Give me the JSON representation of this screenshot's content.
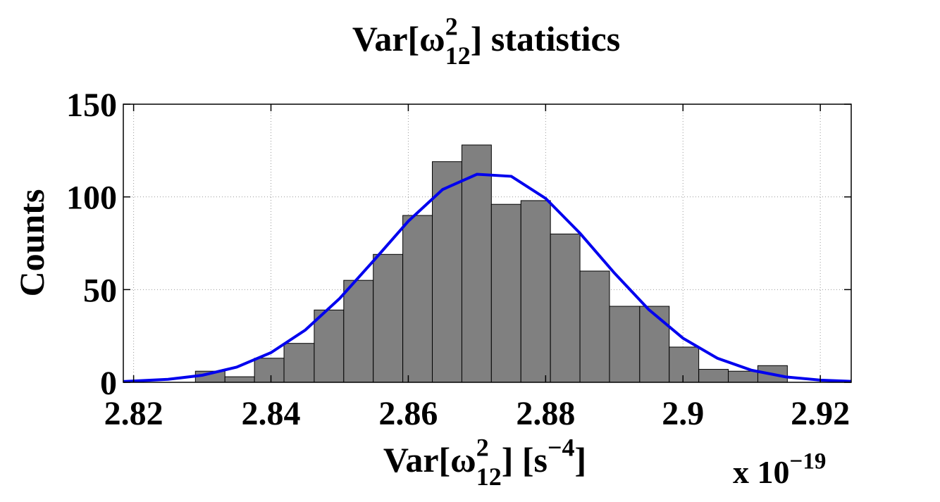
{
  "chart_data": {
    "type": "histogram",
    "title_parts": [
      "Var[ω",
      "2",
      "12",
      "] statistics"
    ],
    "xlabel_parts": [
      "Var[ω",
      "2",
      "12",
      "]  [s",
      "−4",
      "]"
    ],
    "ylabel": "Counts",
    "x_multiplier_parts": [
      "x 10",
      "−19"
    ],
    "bins": [
      2.829,
      2.8333,
      2.8376,
      2.8419,
      2.8463,
      2.8506,
      2.8549,
      2.8592,
      2.8635,
      2.8678,
      2.8721,
      2.8764,
      2.8807,
      2.885,
      2.8893,
      2.8937,
      2.898,
      2.9023,
      2.9066,
      2.9109,
      2.9152
    ],
    "values": [
      6,
      3,
      13,
      21,
      39,
      55,
      69,
      90,
      119,
      128,
      96,
      98,
      80,
      60,
      41,
      41,
      19,
      7,
      6,
      9
    ],
    "color": "#808080",
    "fit": {
      "color": "#0000ee",
      "x": [
        2.8185,
        2.825,
        2.83,
        2.835,
        2.84,
        2.845,
        2.85,
        2.855,
        2.86,
        2.865,
        2.87,
        2.875,
        2.88,
        2.885,
        2.89,
        2.895,
        2.9,
        2.905,
        2.91,
        2.915,
        2.92,
        2.9245
      ],
      "values": [
        0.45,
        1.6,
        3.8,
        8.2,
        16.0,
        28.2,
        45.2,
        65.8,
        86.9,
        104.0,
        112.2,
        111.1,
        99.2,
        80.4,
        59.0,
        39.3,
        23.8,
        13.0,
        6.5,
        2.9,
        1.2,
        0.5
      ]
    },
    "xlim": [
      2.8185,
      2.9245
    ],
    "ylim": [
      0,
      150
    ],
    "xticks": [
      2.82,
      2.84,
      2.86,
      2.88,
      2.9,
      2.92
    ],
    "yticks": [
      0,
      50,
      100,
      150
    ],
    "grid": true
  }
}
